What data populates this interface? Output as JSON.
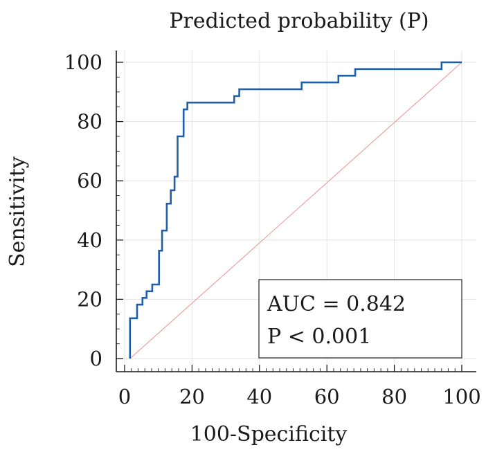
{
  "chart_data": {
    "type": "line",
    "title": "Predicted probability (P)",
    "xlabel": "100-Specificity",
    "ylabel": "Sensitivity",
    "xlim": [
      0,
      100
    ],
    "ylim": [
      0,
      100
    ],
    "x_ticks": [
      0,
      20,
      40,
      60,
      80,
      100
    ],
    "y_ticks": [
      0,
      20,
      40,
      60,
      80,
      100
    ],
    "grid": true,
    "series": [
      {
        "name": "ROC curve",
        "color": "#1f5fa6",
        "step": true,
        "points": [
          [
            1.6,
            0
          ],
          [
            1.6,
            13.6
          ],
          [
            3.7,
            13.6
          ],
          [
            3.7,
            18.2
          ],
          [
            5.3,
            18.2
          ],
          [
            5.3,
            20.5
          ],
          [
            6.5,
            20.5
          ],
          [
            6.5,
            22.7
          ],
          [
            8.2,
            22.7
          ],
          [
            8.2,
            25.0
          ],
          [
            10.2,
            25.0
          ],
          [
            10.2,
            36.4
          ],
          [
            11.1,
            36.4
          ],
          [
            11.1,
            43.2
          ],
          [
            12.5,
            43.2
          ],
          [
            12.5,
            52.3
          ],
          [
            13.7,
            52.3
          ],
          [
            13.7,
            56.8
          ],
          [
            14.8,
            56.8
          ],
          [
            14.8,
            61.4
          ],
          [
            15.7,
            61.4
          ],
          [
            15.7,
            75.0
          ],
          [
            17.5,
            75.0
          ],
          [
            17.5,
            84.1
          ],
          [
            18.6,
            84.1
          ],
          [
            18.6,
            86.4
          ],
          [
            32.5,
            86.4
          ],
          [
            32.5,
            88.6
          ],
          [
            34.0,
            88.6
          ],
          [
            34.0,
            90.9
          ],
          [
            52.5,
            90.9
          ],
          [
            52.5,
            93.2
          ],
          [
            63.4,
            93.2
          ],
          [
            63.4,
            95.5
          ],
          [
            68.4,
            95.5
          ],
          [
            68.4,
            97.7
          ],
          [
            94.0,
            97.7
          ],
          [
            94.0,
            100
          ],
          [
            100,
            100
          ]
        ]
      },
      {
        "name": "Reference line",
        "color": "#e89a9a",
        "points": [
          [
            1.6,
            0
          ],
          [
            100,
            100
          ]
        ]
      }
    ],
    "annotation": {
      "lines": [
        "AUC = 0.842",
        "P < 0.001"
      ],
      "position": "bottom-right"
    }
  }
}
